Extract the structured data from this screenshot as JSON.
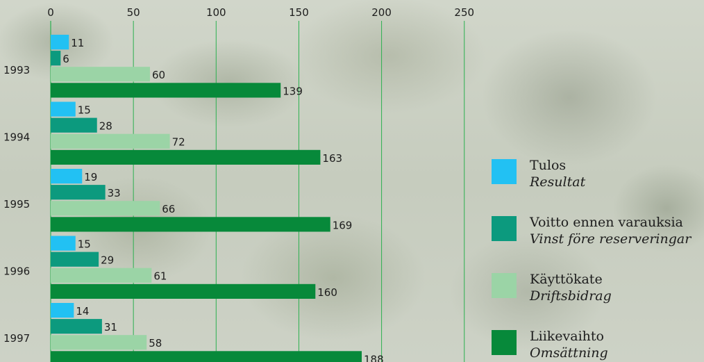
{
  "chart_data": {
    "type": "bar",
    "orientation": "horizontal",
    "categories": [
      "1993",
      "1994",
      "1995",
      "1996",
      "1997"
    ],
    "series": [
      {
        "name": "Tulos",
        "name_sv": "Resultat",
        "color": "#22c1f3",
        "values": [
          11,
          15,
          19,
          15,
          14
        ]
      },
      {
        "name": "Voitto ennen varauksia",
        "name_sv": "Vinst före reserveringar",
        "color": "#0c9a7e",
        "values": [
          6,
          28,
          33,
          29,
          31
        ]
      },
      {
        "name": "Käyttökate",
        "name_sv": "Driftsbidrag",
        "color": "#9bd4a6",
        "values": [
          60,
          72,
          66,
          61,
          58
        ]
      },
      {
        "name": "Liikevaihto",
        "name_sv": "Omsättning",
        "color": "#07893a",
        "values": [
          139,
          163,
          169,
          160,
          188
        ]
      }
    ],
    "xlim": [
      0,
      250
    ],
    "x_ticks": [
      0,
      50,
      100,
      150,
      200,
      250
    ],
    "x_axis_position": "top",
    "grid": true,
    "gridline_color": "#2bb04f",
    "legend_position": "right",
    "title": "",
    "xlabel": "",
    "ylabel": ""
  }
}
